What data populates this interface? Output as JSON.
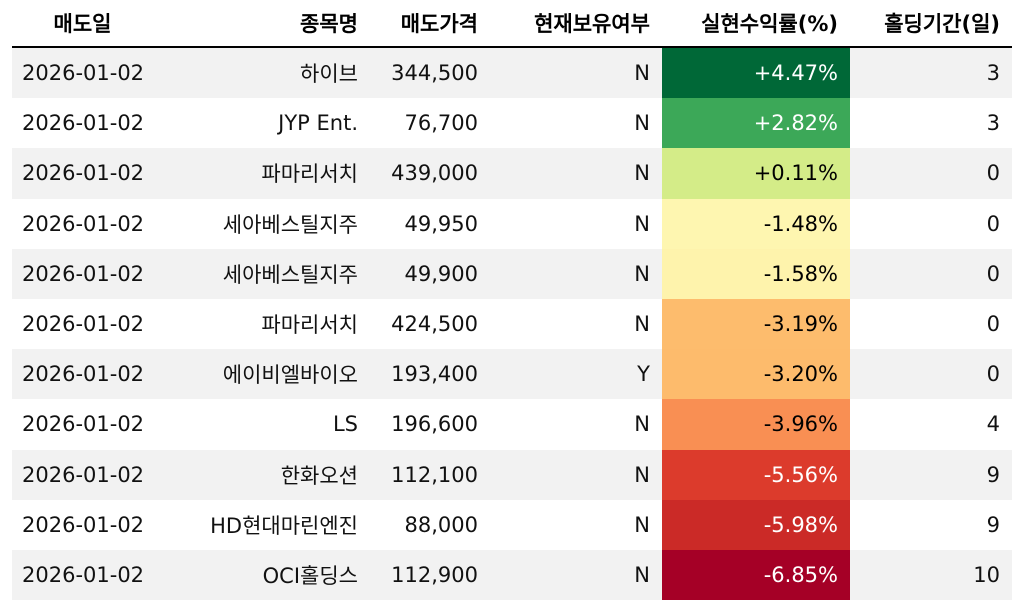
{
  "headers": [
    "매도일",
    "종목명",
    "매도가격",
    "현재보유여부",
    "실현수익률(%)",
    "홀딩기간(일)"
  ],
  "rows": [
    {
      "date": "2026-01-02",
      "name": "하이브",
      "price": "344,500",
      "held": "N",
      "ret": "+4.47%",
      "days": "3",
      "color": "#006837",
      "text": "#ffffff"
    },
    {
      "date": "2026-01-02",
      "name": "JYP Ent.",
      "price": "76,700",
      "held": "N",
      "ret": "+2.82%",
      "days": "3",
      "color": "#3ca858",
      "text": "#ffffff"
    },
    {
      "date": "2026-01-02",
      "name": "파마리서치",
      "price": "439,000",
      "held": "N",
      "ret": "+0.11%",
      "days": "0",
      "color": "#d4ec88",
      "text": "#000000"
    },
    {
      "date": "2026-01-02",
      "name": "세아베스틸지주",
      "price": "49,950",
      "held": "N",
      "ret": "-1.48%",
      "days": "0",
      "color": "#fef6b0",
      "text": "#000000"
    },
    {
      "date": "2026-01-02",
      "name": "세아베스틸지주",
      "price": "49,900",
      "held": "N",
      "ret": "-1.58%",
      "days": "0",
      "color": "#fef3ac",
      "text": "#000000"
    },
    {
      "date": "2026-01-02",
      "name": "파마리서치",
      "price": "424,500",
      "held": "N",
      "ret": "-3.19%",
      "days": "0",
      "color": "#fdbc6d",
      "text": "#000000"
    },
    {
      "date": "2026-01-02",
      "name": "에이비엘바이오",
      "price": "193,400",
      "held": "Y",
      "ret": "-3.20%",
      "days": "0",
      "color": "#fdbb6c",
      "text": "#000000"
    },
    {
      "date": "2026-01-02",
      "name": "LS",
      "price": "196,600",
      "held": "N",
      "ret": "-3.96%",
      "days": "4",
      "color": "#f98f53",
      "text": "#000000"
    },
    {
      "date": "2026-01-02",
      "name": "한화오션",
      "price": "112,100",
      "held": "N",
      "ret": "-5.56%",
      "days": "9",
      "color": "#dc3b2c",
      "text": "#ffffff"
    },
    {
      "date": "2026-01-02",
      "name": "HD현대마린엔진",
      "price": "88,000",
      "held": "N",
      "ret": "-5.98%",
      "days": "9",
      "color": "#cb2a27",
      "text": "#ffffff"
    },
    {
      "date": "2026-01-02",
      "name": "OCI홀딩스",
      "price": "112,900",
      "held": "N",
      "ret": "-6.85%",
      "days": "10",
      "color": "#a50026",
      "text": "#ffffff"
    }
  ]
}
